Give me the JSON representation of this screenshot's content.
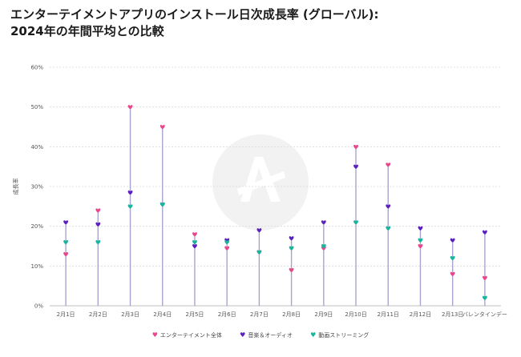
{
  "chart_data": {
    "type": "scatter",
    "title_lines": [
      "エンターテイメントアプリのインストール日次成長率 (グローバル):",
      "2024年の年間平均との比較"
    ],
    "ylabel": "成長率",
    "xlabel": "",
    "ylim": [
      0,
      60
    ],
    "yticks": [
      "0%",
      "10%",
      "20%",
      "30%",
      "40%",
      "50%",
      "60%"
    ],
    "grid": true,
    "legend_position": "bottom",
    "categories": [
      "2月1日",
      "2月2日",
      "2月3日",
      "2月4日",
      "2月5日",
      "2月6日",
      "2月7日",
      "2月8日",
      "2月9日",
      "2月10日",
      "2月11日",
      "2月12日",
      "2月13日",
      "バレンタインデー"
    ],
    "series": [
      {
        "name": "エンターテイメント全体",
        "color": "#e8478b",
        "values": [
          13,
          24,
          50,
          45,
          18,
          14.5,
          13.5,
          9,
          14.5,
          40,
          35.5,
          15,
          8,
          7
        ]
      },
      {
        "name": "音楽＆オーディオ",
        "color": "#5b1fbf",
        "values": [
          21,
          20.5,
          28.5,
          25.5,
          15,
          16.5,
          19,
          17,
          21,
          35,
          25,
          19.5,
          16.5,
          18.5
        ]
      },
      {
        "name": "動画ストリーミング",
        "color": "#17b59c",
        "values": [
          16,
          16,
          25,
          25.5,
          16,
          16,
          13.5,
          14.5,
          15,
          21,
          19.5,
          16.5,
          12,
          2
        ]
      }
    ]
  }
}
